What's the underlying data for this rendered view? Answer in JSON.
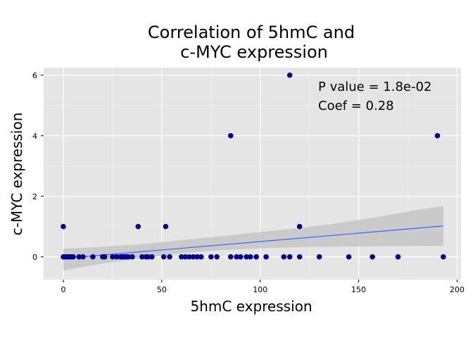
{
  "chart_data": {
    "type": "scatter",
    "title_lines": [
      "Correlation of 5hmC and",
      "c-MYC expression"
    ],
    "xlabel": "5hmC expression",
    "ylabel": "c-MYC expression",
    "xlim": [
      -10,
      202
    ],
    "ylim": [
      -0.75,
      6.25
    ],
    "xticks": [
      0,
      50,
      100,
      150,
      200
    ],
    "yticks": [
      0,
      2,
      4,
      6
    ],
    "xtick_labels": [
      "0",
      "50",
      "100",
      "150",
      "200"
    ],
    "ytick_labels": [
      "0",
      "2",
      "4",
      "6"
    ],
    "grid": true,
    "annotations": [
      "P value = 1.8e-02",
      "Coef = 0.28"
    ],
    "points": [
      {
        "x": 0,
        "y": 1
      },
      {
        "x": 38,
        "y": 1
      },
      {
        "x": 52,
        "y": 1
      },
      {
        "x": 120,
        "y": 1
      },
      {
        "x": 85,
        "y": 4
      },
      {
        "x": 190,
        "y": 4
      },
      {
        "x": 115,
        "y": 6
      },
      {
        "x": 0,
        "y": 0
      },
      {
        "x": 1,
        "y": 0
      },
      {
        "x": 2,
        "y": 0
      },
      {
        "x": 3,
        "y": 0
      },
      {
        "x": 4,
        "y": 0
      },
      {
        "x": 5,
        "y": 0
      },
      {
        "x": 8,
        "y": 0
      },
      {
        "x": 10,
        "y": 0
      },
      {
        "x": 15,
        "y": 0
      },
      {
        "x": 20,
        "y": 0
      },
      {
        "x": 21,
        "y": 0
      },
      {
        "x": 25,
        "y": 0
      },
      {
        "x": 27,
        "y": 0
      },
      {
        "x": 29,
        "y": 0
      },
      {
        "x": 30,
        "y": 0
      },
      {
        "x": 31,
        "y": 0
      },
      {
        "x": 32,
        "y": 0
      },
      {
        "x": 33,
        "y": 0
      },
      {
        "x": 35,
        "y": 0
      },
      {
        "x": 40,
        "y": 0
      },
      {
        "x": 42,
        "y": 0
      },
      {
        "x": 43,
        "y": 0
      },
      {
        "x": 45,
        "y": 0
      },
      {
        "x": 51,
        "y": 0
      },
      {
        "x": 54,
        "y": 0
      },
      {
        "x": 60,
        "y": 0
      },
      {
        "x": 62,
        "y": 0
      },
      {
        "x": 64,
        "y": 0
      },
      {
        "x": 66,
        "y": 0
      },
      {
        "x": 68,
        "y": 0
      },
      {
        "x": 70,
        "y": 0
      },
      {
        "x": 75,
        "y": 0
      },
      {
        "x": 78,
        "y": 0
      },
      {
        "x": 85,
        "y": 0
      },
      {
        "x": 88,
        "y": 0
      },
      {
        "x": 90,
        "y": 0
      },
      {
        "x": 93,
        "y": 0
      },
      {
        "x": 95,
        "y": 0
      },
      {
        "x": 98,
        "y": 0
      },
      {
        "x": 103,
        "y": 0
      },
      {
        "x": 112,
        "y": 0
      },
      {
        "x": 115,
        "y": 0
      },
      {
        "x": 120,
        "y": 0
      },
      {
        "x": 130,
        "y": 0
      },
      {
        "x": 145,
        "y": 0
      },
      {
        "x": 157,
        "y": 0
      },
      {
        "x": 170,
        "y": 0
      },
      {
        "x": 193,
        "y": 0
      }
    ],
    "fit_line": {
      "x": [
        0,
        193
      ],
      "y": [
        -0.05,
        1.02
      ]
    },
    "confidence_band": {
      "x": [
        0,
        20,
        40,
        60,
        80,
        100,
        120,
        140,
        160,
        180,
        193
      ],
      "lower": [
        -0.45,
        -0.22,
        -0.03,
        0.12,
        0.22,
        0.28,
        0.32,
        0.34,
        0.35,
        0.36,
        0.36
      ],
      "upper": [
        0.27,
        0.33,
        0.42,
        0.55,
        0.68,
        0.82,
        0.95,
        1.12,
        1.32,
        1.55,
        1.68
      ]
    },
    "colors": {
      "panel": "#E5E5E5",
      "grid": "#FFFFFF",
      "points": "#00008B",
      "fit_line": "#3366FF",
      "band": "#C6C6C6"
    }
  }
}
